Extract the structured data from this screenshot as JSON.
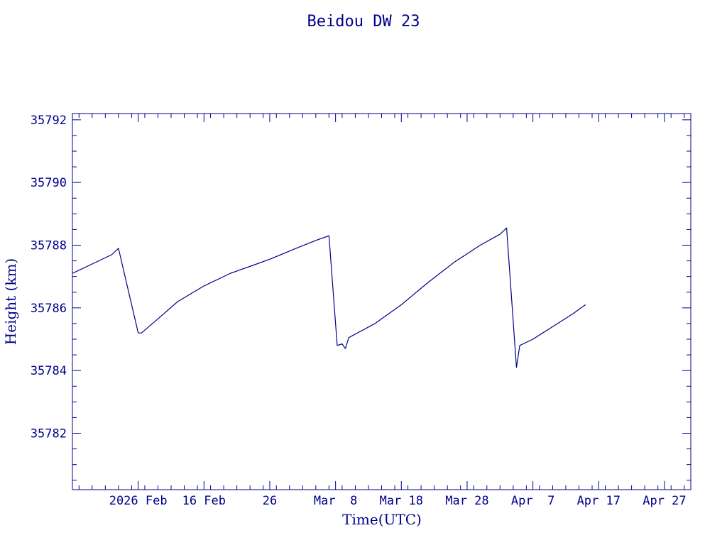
{
  "chart_data": {
    "type": "line",
    "title": "Beidou DW 23",
    "xlabel": "Time(UTC)",
    "ylabel": "Height (km)",
    "x_unit": "date (UTC)",
    "xlim": [
      "2026-01-27",
      "2026-05-01"
    ],
    "ylim": [
      35780.2,
      35792.2
    ],
    "grid": false,
    "x_tick_labels": [
      {
        "date": "2026-02-06",
        "label": "2026 Feb"
      },
      {
        "date": "2026-02-16",
        "label": "16 Feb"
      },
      {
        "date": "2026-02-26",
        "label": "26"
      },
      {
        "date": "2026-03-08",
        "label": "Mar  8"
      },
      {
        "date": "2026-03-18",
        "label": "Mar 18"
      },
      {
        "date": "2026-03-28",
        "label": "Mar 28"
      },
      {
        "date": "2026-04-07",
        "label": "Apr  7"
      },
      {
        "date": "2026-04-17",
        "label": "Apr 17"
      },
      {
        "date": "2026-04-27",
        "label": "Apr 27"
      }
    ],
    "y_tick_labels": [
      "35782",
      "35784",
      "35786",
      "35788",
      "35790",
      "35792"
    ],
    "y_ticks": [
      35782,
      35784,
      35786,
      35788,
      35790,
      35792
    ],
    "series": [
      {
        "color": "#00008b",
        "points": [
          [
            "2026-01-27",
            35787.1
          ],
          [
            "2026-01-30",
            35787.4
          ],
          [
            "2026-02-02",
            35787.7
          ],
          [
            "2026-02-03",
            35787.9
          ],
          [
            "2026-02-06",
            35785.2
          ],
          [
            "2026-02-06T12:00",
            35785.2
          ],
          [
            "2026-02-09",
            35785.65
          ],
          [
            "2026-02-12",
            35786.2
          ],
          [
            "2026-02-16",
            35786.7
          ],
          [
            "2026-02-20",
            35787.1
          ],
          [
            "2026-02-24",
            35787.4
          ],
          [
            "2026-02-26",
            35787.55
          ],
          [
            "2026-03-02",
            35787.9
          ],
          [
            "2026-03-05",
            35788.15
          ],
          [
            "2026-03-07",
            35788.3
          ],
          [
            "2026-03-08T06:00",
            35784.8
          ],
          [
            "2026-03-09",
            35784.85
          ],
          [
            "2026-03-09T12:00",
            35784.7
          ],
          [
            "2026-03-10",
            35785.05
          ],
          [
            "2026-03-14",
            35785.5
          ],
          [
            "2026-03-18",
            35786.1
          ],
          [
            "2026-03-22",
            35786.8
          ],
          [
            "2026-03-26",
            35787.45
          ],
          [
            "2026-03-30",
            35788.0
          ],
          [
            "2026-04-02",
            35788.35
          ],
          [
            "2026-04-03",
            35788.55
          ],
          [
            "2026-04-04T12:00",
            35784.1
          ],
          [
            "2026-04-05",
            35784.8
          ],
          [
            "2026-04-07",
            35785.0
          ],
          [
            "2026-04-10",
            35785.4
          ],
          [
            "2026-04-13",
            35785.8
          ],
          [
            "2026-04-15",
            35786.1
          ]
        ]
      }
    ]
  }
}
